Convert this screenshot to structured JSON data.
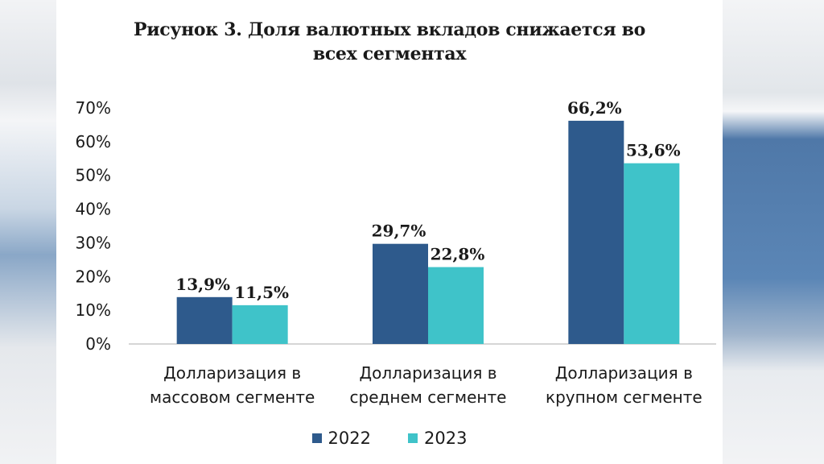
{
  "chart_data": {
    "type": "bar",
    "title": "Рисунок 3. Доля валютных вкладов снижается во всех сегментах",
    "title_lines": [
      "Рисунок 3. Доля валютных вкладов снижается во",
      "всех сегментах"
    ],
    "categories": [
      [
        "Долларизация в",
        "массовом сегменте"
      ],
      [
        "Долларизация в",
        "среднем сегменте"
      ],
      [
        "Долларизация в",
        "крупном сегменте"
      ]
    ],
    "series": [
      {
        "name": "2022",
        "color": "#2e5a8c",
        "values": [
          13.9,
          29.7,
          66.2
        ],
        "labels": [
          "13,9%",
          "29,7%",
          "66,2%"
        ]
      },
      {
        "name": "2023",
        "color": "#3fc3c9",
        "values": [
          11.5,
          22.8,
          53.6
        ],
        "labels": [
          "11,5%",
          "22,8%",
          "53,6%"
        ]
      }
    ],
    "ylim": [
      0,
      70
    ],
    "yticks": [
      "0%",
      "10%",
      "20%",
      "30%",
      "40%",
      "50%",
      "60%",
      "70%"
    ],
    "xlabel": "",
    "ylabel": "",
    "grid": false,
    "legend_position": "bottom"
  },
  "legend": {
    "items": [
      {
        "label": "2022",
        "color": "#2e5a8c"
      },
      {
        "label": "2023",
        "color": "#3fc3c9"
      }
    ]
  }
}
